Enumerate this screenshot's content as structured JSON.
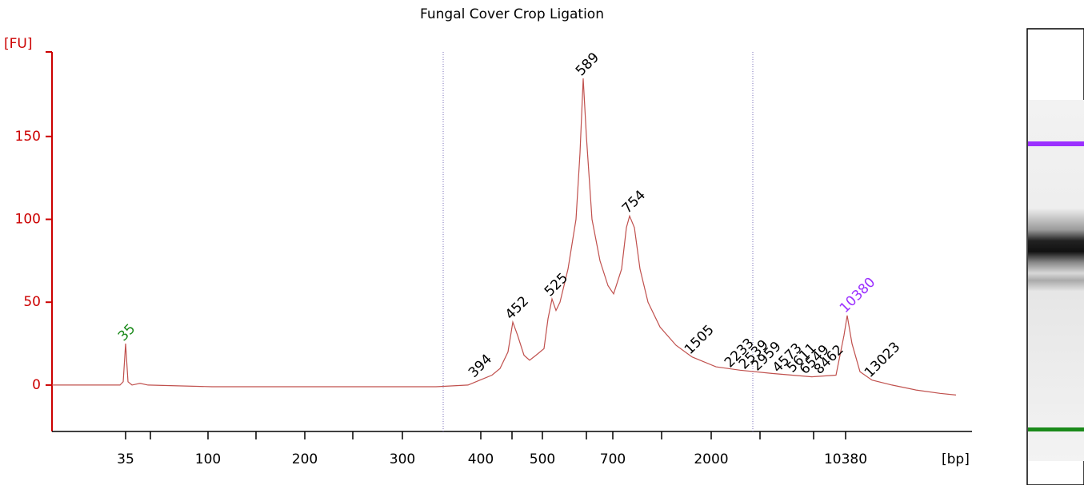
{
  "chart_data": {
    "type": "line",
    "title": "Fungal Cover Crop Ligation",
    "y_label": "[FU]",
    "x_label": "[bp]",
    "color": "#c0504d",
    "axis_color": "#cc0000",
    "x": [
      0,
      85,
      89,
      92,
      95,
      100,
      110,
      120,
      200,
      300,
      400,
      480,
      520,
      535,
      550,
      560,
      570,
      576,
      582,
      590,
      597,
      605,
      615,
      620,
      625,
      630,
      635,
      645,
      655,
      660,
      664,
      668,
      675,
      685,
      695,
      702,
      712,
      718,
      722,
      728,
      735,
      745,
      760,
      780,
      800,
      830,
      860,
      900,
      950,
      980,
      990,
      994,
      1000,
      1010,
      1025,
      1050,
      1080,
      1110,
      1130
    ],
    "values": [
      0,
      0,
      2,
      25,
      2,
      0,
      1,
      0,
      -1,
      -1,
      -1,
      -1,
      0,
      3,
      6,
      10,
      20,
      38,
      30,
      18,
      15,
      18,
      22,
      40,
      52,
      45,
      50,
      70,
      100,
      140,
      185,
      150,
      100,
      75,
      60,
      55,
      70,
      95,
      102,
      95,
      70,
      50,
      35,
      24,
      17,
      11,
      9,
      7,
      5,
      6,
      30,
      42,
      25,
      8,
      3,
      0,
      -3,
      -5,
      -6
    ],
    "xlim": [
      0,
      1150
    ],
    "ylim": [
      -28,
      201
    ],
    "yticks": [
      0,
      50,
      100,
      150
    ],
    "xticks": [
      {
        "value": 92,
        "label": "35"
      },
      {
        "value": 195,
        "label": "100"
      },
      {
        "value": 316,
        "label": "200"
      },
      {
        "value": 438,
        "label": "300"
      },
      {
        "value": 536,
        "label": "400"
      },
      {
        "value": 613,
        "label": "500"
      },
      {
        "value": 701,
        "label": "700"
      },
      {
        "value": 824,
        "label": "2000"
      },
      {
        "value": 992,
        "label": "10380"
      }
    ],
    "minor_xticks": [
      123,
      255,
      376,
      575,
      668,
      762,
      885,
      952
    ],
    "region_markers": [
      489,
      876
    ],
    "peaks": [
      {
        "label": "35",
        "x": 92,
        "y": 25,
        "color": "#1a8a1a"
      },
      {
        "label": "394",
        "x": 530,
        "y": 3,
        "color": "#000000"
      },
      {
        "label": "452",
        "x": 576,
        "y": 38,
        "color": "#000000"
      },
      {
        "label": "525",
        "x": 625,
        "y": 52,
        "color": "#000000"
      },
      {
        "label": "589",
        "x": 664,
        "y": 185,
        "color": "#000000"
      },
      {
        "label": "754",
        "x": 722,
        "y": 102,
        "color": "#000000"
      },
      {
        "label": "1505",
        "x": 800,
        "y": 17,
        "color": "#000000"
      },
      {
        "label": "2233",
        "x": 850,
        "y": 9,
        "color": "#000000"
      },
      {
        "label": "2539",
        "x": 868,
        "y": 8,
        "color": "#000000"
      },
      {
        "label": "2959",
        "x": 884,
        "y": 7,
        "color": "#000000"
      },
      {
        "label": "4573",
        "x": 910,
        "y": 6,
        "color": "#000000"
      },
      {
        "label": "5611",
        "x": 928,
        "y": 6,
        "color": "#000000"
      },
      {
        "label": "6549",
        "x": 944,
        "y": 5,
        "color": "#000000"
      },
      {
        "label": "8462",
        "x": 962,
        "y": 5,
        "color": "#000000"
      },
      {
        "label": "10380",
        "x": 994,
        "y": 42,
        "color": "#9b30ff"
      },
      {
        "label": "13023",
        "x": 1025,
        "y": 3,
        "color": "#000000"
      }
    ]
  }
}
